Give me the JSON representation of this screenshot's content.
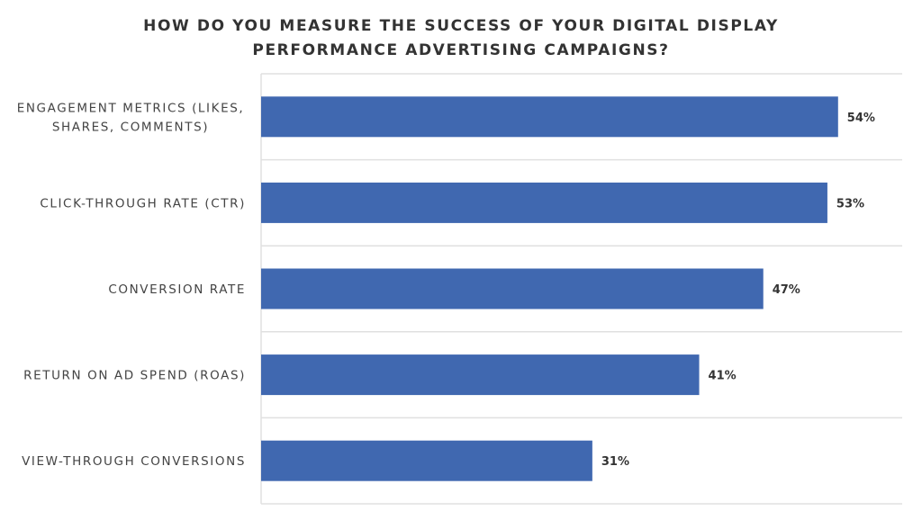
{
  "chart_data": {
    "type": "bar",
    "orientation": "horizontal",
    "title_lines": [
      "HOW DO YOU MEASURE THE SUCCESS OF YOUR DIGITAL DISPLAY",
      "PERFORMANCE ADVERTISING CAMPAIGNS?"
    ],
    "categories": [
      [
        "ENGAGEMENT METRICS (LIKES,",
        "SHARES, COMMENTS)"
      ],
      [
        "CLICK-THROUGH RATE (CTR)"
      ],
      [
        "CONVERSION RATE"
      ],
      [
        "RETURN ON AD SPEND (ROAS)"
      ],
      [
        "VIEW-THROUGH CONVERSIONS"
      ]
    ],
    "values": [
      54,
      53,
      47,
      41,
      31
    ],
    "data_labels": [
      "54%",
      "53%",
      "47%",
      "41%",
      "31%"
    ],
    "xlim": [
      0,
      60
    ],
    "grid": true,
    "bar_color": "#4068b0",
    "gridline_color": "#e0e0e0",
    "xlabel": "",
    "ylabel": ""
  }
}
